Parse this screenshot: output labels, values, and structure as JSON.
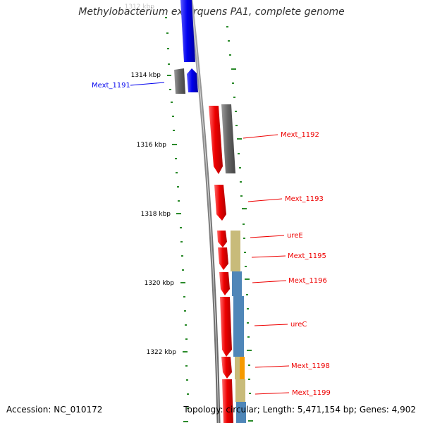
{
  "title": "Methylobacterium extorquens PA1, complete genome",
  "footer": {
    "accession": "Accession: NC_010172",
    "topology": "Topology: circular; Length: 5,471,154 bp; Genes: 4,902"
  },
  "ruler_labels": [
    "1312 kbp",
    "1314 kbp",
    "1316 kbp",
    "1318 kbp",
    "1320 kbp",
    "1322 kbp"
  ],
  "gene_labels": [
    {
      "text": "Mext_1191",
      "strand": "minus"
    },
    {
      "text": "Mext_1192",
      "strand": "plus"
    },
    {
      "text": "Mext_1193",
      "strand": "plus"
    },
    {
      "text": "ureE",
      "strand": "plus"
    },
    {
      "text": "Mext_1195",
      "strand": "plus"
    },
    {
      "text": "Mext_1196",
      "strand": "plus"
    },
    {
      "text": "ureC",
      "strand": "plus"
    },
    {
      "text": "Mext_1198",
      "strand": "plus"
    },
    {
      "text": "Mext_1199",
      "strand": "plus"
    }
  ],
  "colors": {
    "minus_strand": "#0000ee",
    "plus_strand": "#ee0000",
    "pseudo_gray": "#666666",
    "backbone": "#888888",
    "tick": "#2a8a2a",
    "domain_khaki": "#c8bb7a",
    "domain_blue": "#4f86b8",
    "domain_orange": "#f59a00"
  }
}
